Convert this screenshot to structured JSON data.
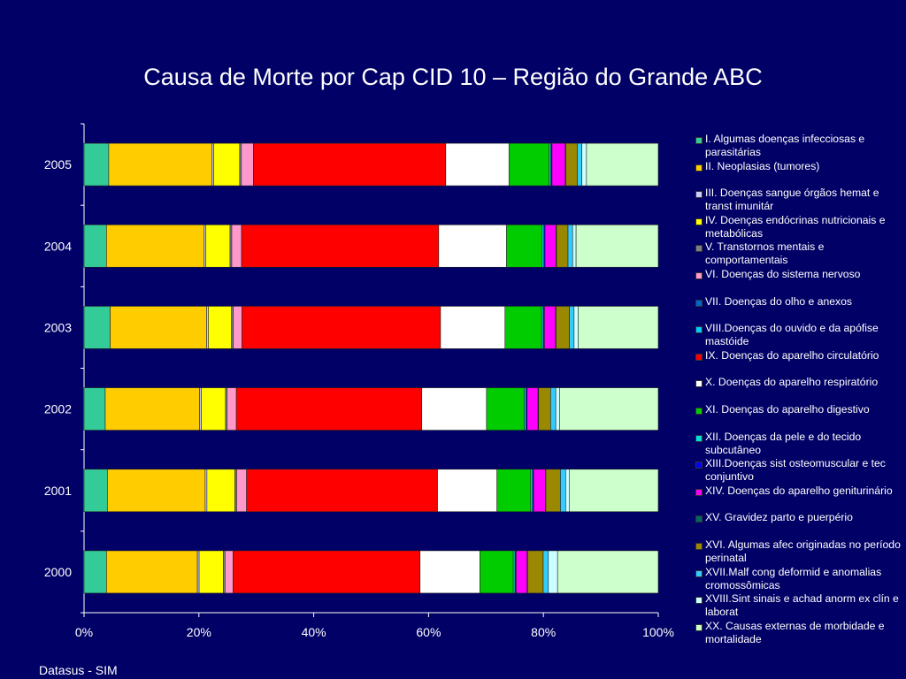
{
  "title": "Causa de Morte por Cap CID 10 – Região do Grande ABC",
  "source": "Datasus - SIM",
  "chart_data": {
    "type": "bar",
    "orientation": "horizontal",
    "stacked": "100%",
    "categories": [
      "2005",
      "2004",
      "2003",
      "2002",
      "2001",
      "2000"
    ],
    "xlim": [
      0,
      100
    ],
    "x_ticks": [
      "0%",
      "20%",
      "40%",
      "60%",
      "80%",
      "100%"
    ],
    "grid": false,
    "legend": "right",
    "series": [
      {
        "name": "I.   Algumas doenças infecciosas e parasitárias",
        "color": "#33CC99",
        "values": [
          4.3,
          3.9,
          4.5,
          3.7,
          4.0,
          3.9
        ]
      },
      {
        "name": "II.  Neoplasias (tumores)",
        "color": "#FFCC00",
        "values": [
          18.0,
          17.0,
          16.6,
          16.5,
          16.8,
          15.8
        ]
      },
      {
        "name": "III. Doenças sangue órgãos hemat e transt imunitár",
        "color": "#CCCCFF",
        "values": [
          0.3,
          0.3,
          0.3,
          0.3,
          0.3,
          0.3
        ]
      },
      {
        "name": "IV.  Doenças endócrinas nutricionais e metabólicas",
        "color": "#FFFF00",
        "values": [
          4.5,
          4.2,
          4.0,
          4.2,
          4.8,
          4.2
        ]
      },
      {
        "name": "V.   Transtornos mentais e comportamentais",
        "color": "#808080",
        "values": [
          0.3,
          0.3,
          0.3,
          0.3,
          0.3,
          0.3
        ]
      },
      {
        "name": "VI.  Doenças do sistema nervoso",
        "color": "#FF99CC",
        "values": [
          2.1,
          1.7,
          1.5,
          1.6,
          1.7,
          1.4
        ]
      },
      {
        "name": "VII. Doenças do olho e anexos",
        "color": "#0066CC",
        "values": [
          0,
          0,
          0,
          0,
          0,
          0
        ]
      },
      {
        "name": "VIII.Doenças do ouvido e da apófise mastóide",
        "color": "#00CCFF",
        "values": [
          0,
          0,
          0,
          0,
          0,
          0
        ]
      },
      {
        "name": "IX.  Doenças do aparelho circulatório",
        "color": "#FF0000",
        "values": [
          33.5,
          34.3,
          34.2,
          32.4,
          32.8,
          32.5
        ]
      },
      {
        "name": "X.   Doenças do aparelho respiratório",
        "color": "#FFFFFF",
        "values": [
          11.0,
          11.8,
          11.1,
          11.3,
          10.2,
          10.4
        ]
      },
      {
        "name": "XI.  Doenças do aparelho digestivo",
        "color": "#00CC00",
        "values": [
          7.0,
          6.2,
          6.3,
          6.6,
          5.8,
          5.8
        ]
      },
      {
        "name": "XII. Doenças da pele e do tecido subcutâneo",
        "color": "#00E0E0",
        "values": [
          0.3,
          0.3,
          0.3,
          0.3,
          0.3,
          0.3
        ]
      },
      {
        "name": "XIII.Doenças sist osteomuscular e tec conjuntivo",
        "color": "#0000FF",
        "values": [
          0.2,
          0.2,
          0.2,
          0.2,
          0.2,
          0.2
        ]
      },
      {
        "name": "XIV. Doenças do aparelho geniturinário",
        "color": "#FF00FF",
        "values": [
          2.3,
          1.9,
          1.9,
          1.9,
          2.0,
          1.9
        ]
      },
      {
        "name": "XV.  Gravidez parto e puerpério",
        "color": "#006666",
        "values": [
          0.1,
          0.1,
          0.1,
          0.1,
          0.1,
          0.1
        ]
      },
      {
        "name": "XVI. Algumas afec originadas no período perinatal",
        "color": "#998800",
        "values": [
          2.0,
          2.0,
          2.3,
          2.1,
          2.5,
          2.7
        ]
      },
      {
        "name": "XVII.Malf cong deformid e anomalias cromossômicas",
        "color": "#33CCFF",
        "values": [
          0.8,
          0.8,
          0.8,
          0.9,
          0.9,
          0.9
        ]
      },
      {
        "name": "XVIII.Sint sinais e achad anorm ex clín e laborat",
        "color": "#CCFFFF",
        "values": [
          0.8,
          0.6,
          0.7,
          0.7,
          0.6,
          1.6
        ]
      },
      {
        "name": "XX.  Causas externas de morbidade e mortalidade",
        "color": "#CCFFCC",
        "values": [
          12.5,
          14.3,
          13.8,
          17.2,
          15.3,
          17.5
        ]
      }
    ]
  }
}
